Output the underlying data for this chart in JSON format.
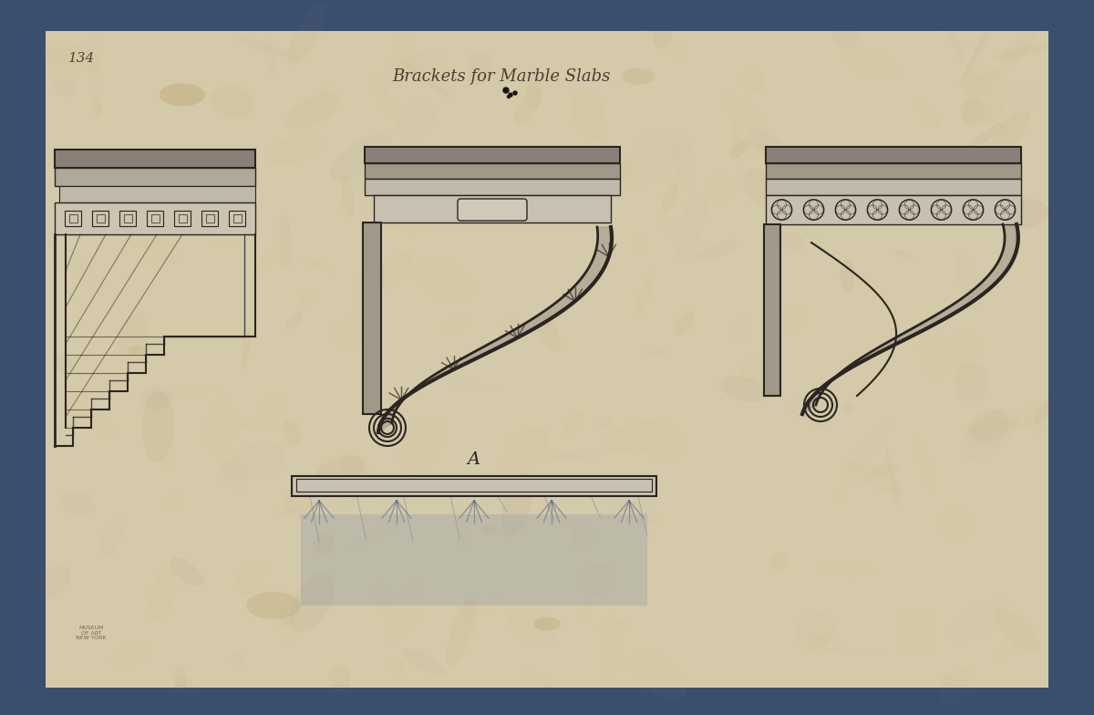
{
  "bg_outer": "#3a4e6e",
  "bg_paper": "#d4c9a8",
  "title_text": "Brackets for Marble Slabs",
  "title_fontsize": 13,
  "title_color": "#4a4035",
  "page_num": "134",
  "label_A": "A",
  "ink_color": "#2a2520",
  "shadow_color": "#6a6055"
}
